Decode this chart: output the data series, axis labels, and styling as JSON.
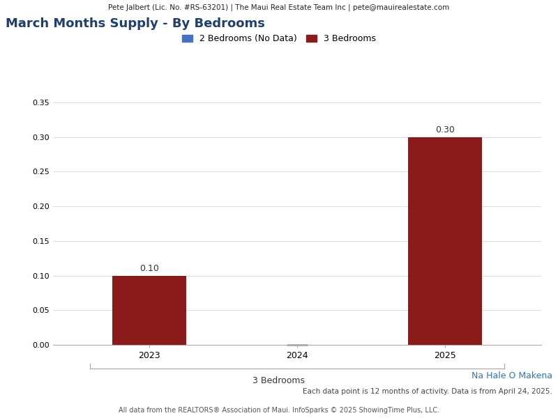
{
  "header_text": "Pete Jalbert (Lic. No. #RS-63201) | The Maui Real Estate Team Inc | pete@mauirealestate.com",
  "title": "March Months Supply - By Bedrooms",
  "title_color": "#1F3F6E",
  "title_fontsize": 13,
  "legend_entries": [
    {
      "label": "2 Bedrooms (No Data)",
      "color": "#4472C4"
    },
    {
      "label": "3 Bedrooms",
      "color": "#8B1A1A"
    }
  ],
  "years": [
    "2023",
    "2024",
    "2025"
  ],
  "bar_values_3bed": [
    0.1,
    null,
    0.3
  ],
  "bar_color_3bed": "#8B1A1A",
  "ylim": [
    0,
    0.35
  ],
  "yticks": [
    0.0,
    0.05,
    0.1,
    0.15,
    0.2,
    0.25,
    0.3,
    0.35
  ],
  "xlabel_group": "3 Bedrooms",
  "footer_location": "Na Hale O Makena",
  "footer_location_color": "#2E75B6",
  "footer_note": "Each data point is 12 months of activity. Data is from April 24, 2025.",
  "footer_copyright": "All data from the REALTORS® Association of Maui. InfoSparks © 2025 ShowingTime Plus, LLC.",
  "header_bg_color": "#E8E8E8",
  "plot_bg_color": "#FFFFFF",
  "grid_color": "#DDDDDD",
  "bar_width": 0.5,
  "dash_color": "#AAAAAA"
}
